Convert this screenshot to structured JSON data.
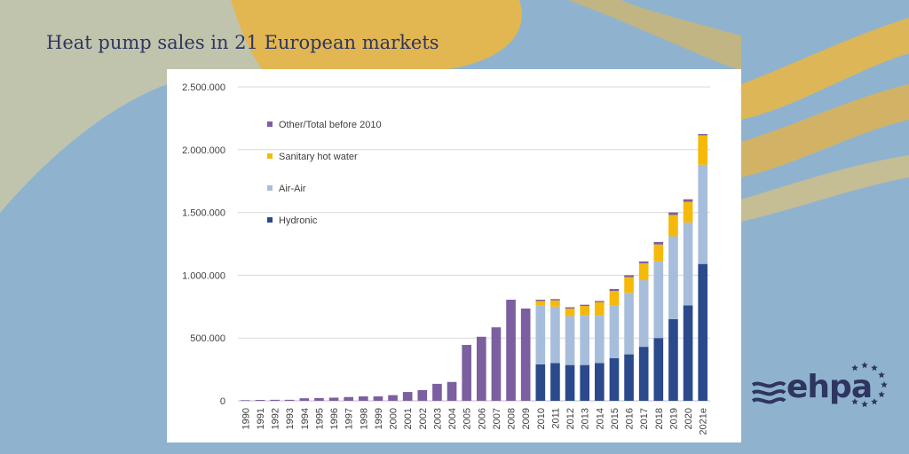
{
  "page": {
    "title": "Heat pump sales in 21 European markets"
  },
  "logo": {
    "text": "ehpa",
    "color": "#2e3560",
    "star_color": "#2e3560"
  },
  "colors": {
    "background": "#8fb3cf",
    "gold": "#e2b651",
    "other": "#7b5fa0",
    "sanitary": "#f5b90a",
    "air_air": "#a6bedb",
    "hydronic": "#2b4a8c"
  },
  "chart_data": {
    "type": "bar",
    "stacked": true,
    "title": "",
    "xlabel": "",
    "ylabel": "",
    "ylim": [
      0,
      2500000
    ],
    "yticks": [
      0,
      500000,
      1000000,
      1500000,
      2000000,
      2500000
    ],
    "ytick_labels": [
      "0",
      "500.000",
      "1.000.000",
      "1.500.000",
      "2.000.000",
      "2.500.000"
    ],
    "grid": true,
    "legend_position": "top-left",
    "categories": [
      "1990",
      "1991",
      "1992",
      "1993",
      "1994",
      "1995",
      "1996",
      "1997",
      "1998",
      "1999",
      "2000",
      "2001",
      "2002",
      "2003",
      "2004",
      "2005",
      "2006",
      "2007",
      "2008",
      "2009",
      "2010",
      "2011",
      "2012",
      "2013",
      "2014",
      "2015",
      "2016",
      "2017",
      "2018",
      "2019",
      "2020",
      "2021e"
    ],
    "legend_order": [
      "other",
      "sanitary",
      "air_air",
      "hydronic"
    ],
    "series": [
      {
        "key": "hydronic",
        "name": "Hydronic",
        "color": "#2b4a8c",
        "values": [
          0,
          0,
          0,
          0,
          0,
          0,
          0,
          0,
          0,
          0,
          0,
          0,
          0,
          0,
          0,
          0,
          0,
          0,
          0,
          0,
          290000,
          300000,
          285000,
          285000,
          300000,
          340000,
          370000,
          430000,
          500000,
          650000,
          760000,
          1090000
        ]
      },
      {
        "key": "air_air",
        "name": "Air-Air",
        "color": "#a6bedb",
        "values": [
          0,
          0,
          0,
          0,
          0,
          0,
          0,
          0,
          0,
          0,
          0,
          0,
          0,
          0,
          0,
          0,
          0,
          0,
          0,
          0,
          470000,
          450000,
          390000,
          395000,
          380000,
          420000,
          490000,
          530000,
          610000,
          660000,
          660000,
          790000
        ]
      },
      {
        "key": "sanitary",
        "name": "Sanitary hot water",
        "color": "#f5b90a",
        "values": [
          0,
          0,
          0,
          0,
          0,
          0,
          0,
          0,
          0,
          0,
          0,
          0,
          0,
          0,
          0,
          0,
          0,
          0,
          0,
          0,
          35000,
          50000,
          60000,
          75000,
          105000,
          115000,
          125000,
          135000,
          135000,
          170000,
          165000,
          235000
        ]
      },
      {
        "key": "other",
        "name": "Other/Total before 2010",
        "color": "#7b5fa0",
        "values": [
          5000,
          7000,
          8000,
          8000,
          20000,
          22000,
          25000,
          30000,
          35000,
          35000,
          45000,
          70000,
          85000,
          135000,
          150000,
          445000,
          510000,
          585000,
          805000,
          735000,
          10000,
          10000,
          10000,
          10000,
          10000,
          15000,
          15000,
          15000,
          20000,
          20000,
          20000,
          10000
        ]
      }
    ]
  }
}
